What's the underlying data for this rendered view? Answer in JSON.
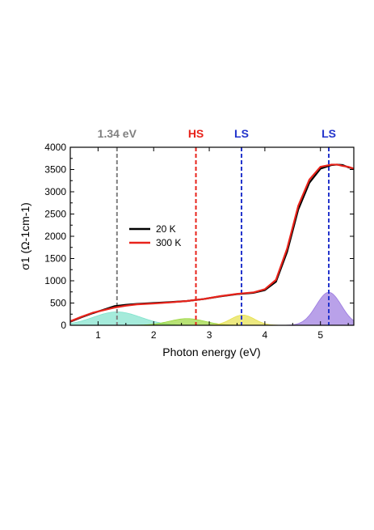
{
  "chart_data": {
    "type": "line",
    "xlabel": "Photon energy (eV)",
    "ylabel": "σ1 (Ω-1cm-1)",
    "xlim": [
      0.5,
      5.6
    ],
    "ylim": [
      0,
      4000
    ],
    "x_ticks": [
      "1",
      "2",
      "3",
      "4",
      "5"
    ],
    "y_ticks": [
      "0",
      "500",
      "1000",
      "1500",
      "2000",
      "2500",
      "3000",
      "3500",
      "4000"
    ],
    "legend_position": "center-left",
    "series": [
      {
        "name": "20 K",
        "color": "#000000",
        "x": [
          0.5,
          0.7,
          0.9,
          1.1,
          1.3,
          1.5,
          1.7,
          2.0,
          2.3,
          2.6,
          2.9,
          3.2,
          3.5,
          3.8,
          4.0,
          4.2,
          4.4,
          4.6,
          4.8,
          5.0,
          5.2,
          5.3,
          5.4,
          5.5,
          5.6
        ],
        "y": [
          80,
          180,
          270,
          350,
          430,
          460,
          480,
          500,
          520,
          545,
          590,
          650,
          700,
          730,
          790,
          980,
          1650,
          2600,
          3200,
          3520,
          3600,
          3610,
          3600,
          3550,
          3520
        ]
      },
      {
        "name": "300 K",
        "color": "#e8231b",
        "x": [
          0.5,
          0.7,
          0.9,
          1.1,
          1.3,
          1.5,
          1.7,
          2.0,
          2.3,
          2.6,
          2.9,
          3.2,
          3.5,
          3.8,
          4.0,
          4.2,
          4.4,
          4.6,
          4.8,
          5.0,
          5.2,
          5.3,
          5.4,
          5.5,
          5.6
        ],
        "y": [
          90,
          190,
          280,
          340,
          400,
          440,
          470,
          490,
          515,
          545,
          590,
          655,
          705,
          740,
          810,
          1020,
          1720,
          2680,
          3270,
          3560,
          3610,
          3610,
          3580,
          3560,
          3520
        ]
      }
    ],
    "components": [
      {
        "center": 1.34,
        "amplitude": 300,
        "width": 0.6,
        "color": "#7fe3cc"
      },
      {
        "center": 2.6,
        "amplitude": 150,
        "width": 0.45,
        "color": "#9ad63a"
      },
      {
        "center": 3.6,
        "amplitude": 230,
        "width": 0.3,
        "color": "#e6e04a"
      },
      {
        "center": 5.15,
        "amplitude": 740,
        "width": 0.32,
        "color": "#9b79e0"
      }
    ],
    "annotations": [
      {
        "label": "1.34 eV",
        "x": 1.34,
        "color": "#808080"
      },
      {
        "label": "HS",
        "x": 2.76,
        "color": "#e8231b"
      },
      {
        "label": "LS",
        "x": 3.58,
        "color": "#2233cc"
      },
      {
        "label": "LS",
        "x": 5.15,
        "color": "#2233cc"
      }
    ]
  }
}
